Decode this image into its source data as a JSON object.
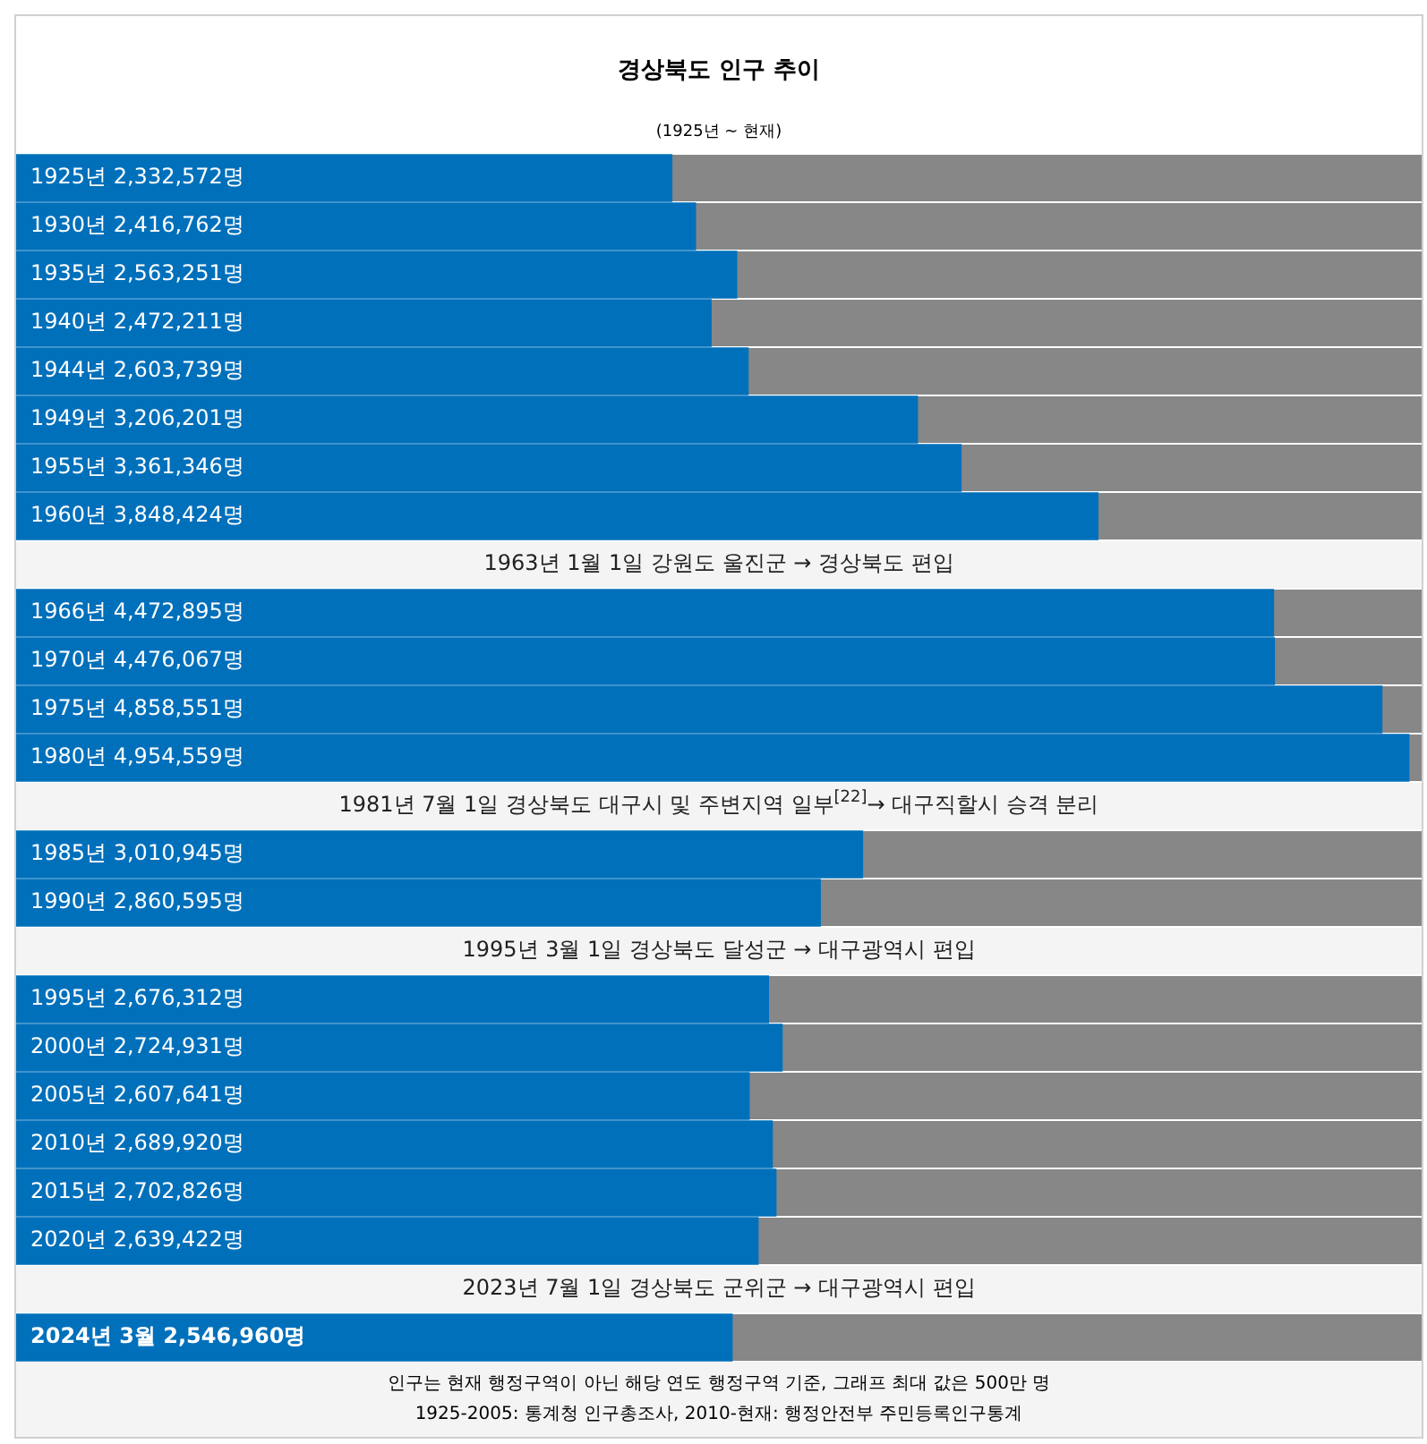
{
  "chart_data": {
    "type": "bar",
    "orientation": "horizontal",
    "title": "경상북도 인구 추이",
    "subtitle": "(1925년 ~ 현재)",
    "categories": [
      "1925년",
      "1930년",
      "1935년",
      "1940년",
      "1944년",
      "1949년",
      "1955년",
      "1960년",
      "1963년 1월 1일 강원도 울진군 → 경상북도 편입",
      "1966년",
      "1970년",
      "1975년",
      "1980년",
      "1981년 7월 1일 경상북도 대구시 및 주변지역 일부$^{[22]}$→ 대구직할시 승격 분리",
      "1985년",
      "1990년",
      "1995년 3월 1일 경상북도 달성군 → 대구광역시 편입",
      "1995년",
      "2000년",
      "2005년",
      "2010년",
      "2015년",
      "2020년",
      "2023년 7월 1일 경상북도 군위군 → 대구광역시 편입",
      "2024년 3월"
    ],
    "values": [
      2332572,
      2416762,
      2563251,
      2472211,
      2603739,
      3206201,
      3361346,
      3848424,
      null,
      4472895,
      4476067,
      4858551,
      4954559,
      null,
      3010945,
      2860595,
      null,
      2676312,
      2724931,
      2607641,
      2689920,
      2702826,
      2639422,
      null,
      2546960
    ],
    "value_labels": [
      "2,332,572명",
      "2,416,762명",
      "2,563,251명",
      "2,472,211명",
      "2,603,739명",
      "3,206,201명",
      "3,361,346명",
      "3,848,424명",
      null,
      "4,472,895명",
      "4,476,067명",
      "4,858,551명",
      "4,954,559명",
      null,
      "3,010,945명",
      "2,860,595명",
      null,
      "2,676,312명",
      "2,724,931명",
      "2,607,641명",
      "2,689,920명",
      "2,702,826명",
      "2,639,422명",
      null,
      "2,546,960명"
    ],
    "color": "#0070bb",
    "xlim": [
      0,
      5000000
    ],
    "legend": false,
    "annotations": [
      "인구는 현재 행정구역이 아닌 해당 연도 행정구역 기준, 그래프 최대 값은 500만 명",
      "1925-2005: 통계청 인구총조사, 2010-현재: 행정안전부 주민등록인구통계"
    ]
  }
}
